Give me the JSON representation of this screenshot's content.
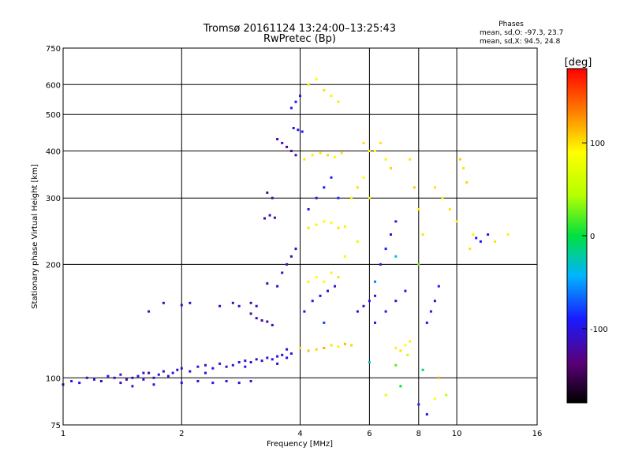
{
  "header": {
    "title_line1": "Tromsø 20161124 13:24:00–13:25:43",
    "title_line2": "RwPretec (Bp)"
  },
  "phases": {
    "label": "Phases",
    "line_o": "mean, sd,O: -97.3, 23.7",
    "line_x": "mean, sd,X:  94.5, 24.8"
  },
  "colorbar": {
    "unit": "[deg]",
    "range": [
      -180,
      180
    ],
    "ticks": [
      {
        "value": 100,
        "label": "100"
      },
      {
        "value": 0,
        "label": "0"
      },
      {
        "value": -100,
        "label": "-100"
      }
    ]
  },
  "chart_data": {
    "type": "scatter",
    "title": "Tromsø 20161124 13:24:00–13:25:43",
    "subtitle": "RwPretec (Bp)",
    "xlabel": "Frequency [MHz]",
    "ylabel": "Stationary phase Virtual Height [km]",
    "x_scale": "log",
    "y_scale": "log",
    "xlim": [
      1,
      16
    ],
    "ylim": [
      75,
      750
    ],
    "xticks": [
      {
        "value": 1,
        "label": "1"
      },
      {
        "value": 2,
        "label": "2"
      },
      {
        "value": 4,
        "label": "4"
      },
      {
        "value": 6,
        "label": "6"
      },
      {
        "value": 8,
        "label": "8"
      },
      {
        "value": 10,
        "label": "10"
      },
      {
        "value": 16,
        "label": "16"
      }
    ],
    "xgrid": [
      2,
      4,
      6,
      8,
      10
    ],
    "yticks": [
      {
        "value": 75,
        "label": "75"
      },
      {
        "value": 100,
        "label": "100"
      },
      {
        "value": 200,
        "label": "200"
      },
      {
        "value": 300,
        "label": "300"
      },
      {
        "value": 400,
        "label": "400"
      },
      {
        "value": 500,
        "label": "500"
      },
      {
        "value": 600,
        "label": "600"
      },
      {
        "value": 750,
        "label": "750"
      }
    ],
    "ygrid": [
      100,
      200,
      300,
      400,
      500,
      600
    ],
    "grid": true,
    "color_by": "phase [deg]",
    "points": [
      [
        1.0,
        96,
        -95
      ],
      [
        1.05,
        98,
        -100
      ],
      [
        1.1,
        97,
        -95
      ],
      [
        1.15,
        100,
        -105
      ],
      [
        1.2,
        99,
        -100
      ],
      [
        1.25,
        98,
        -110
      ],
      [
        1.3,
        101,
        -95
      ],
      [
        1.35,
        100,
        -100
      ],
      [
        1.4,
        102,
        -105
      ],
      [
        1.45,
        99,
        -120
      ],
      [
        1.5,
        100,
        -100
      ],
      [
        1.55,
        101,
        -110
      ],
      [
        1.6,
        99,
        -105
      ],
      [
        1.65,
        103,
        -125
      ],
      [
        1.7,
        100,
        -110
      ],
      [
        1.75,
        102,
        -100
      ],
      [
        1.8,
        104,
        -105
      ],
      [
        1.85,
        101,
        -115
      ],
      [
        1.9,
        103,
        -100
      ],
      [
        1.95,
        105,
        -110
      ],
      [
        2.0,
        106,
        -110
      ],
      [
        2.1,
        104,
        -105
      ],
      [
        2.2,
        107,
        -100
      ],
      [
        2.3,
        108,
        -110
      ],
      [
        2.4,
        106,
        -105
      ],
      [
        2.5,
        109,
        -100
      ],
      [
        2.6,
        107,
        -110
      ],
      [
        2.7,
        108,
        -100
      ],
      [
        2.8,
        110,
        -95
      ],
      [
        2.9,
        111,
        -105
      ],
      [
        3.0,
        110,
        -100
      ],
      [
        3.1,
        112,
        -110
      ],
      [
        3.2,
        111,
        -105
      ],
      [
        3.3,
        113,
        -100
      ],
      [
        3.4,
        112,
        -95
      ],
      [
        3.5,
        114,
        -105
      ],
      [
        3.6,
        115,
        -110
      ],
      [
        3.7,
        113,
        -100
      ],
      [
        3.8,
        116,
        -95
      ],
      [
        1.5,
        95,
        -105
      ],
      [
        1.7,
        96,
        -110
      ],
      [
        2.0,
        97,
        -100
      ],
      [
        2.2,
        98,
        -105
      ],
      [
        2.4,
        97,
        -95
      ],
      [
        2.6,
        98,
        -100
      ],
      [
        2.8,
        97,
        -105
      ],
      [
        3.0,
        98,
        -100
      ],
      [
        1.65,
        150,
        -115
      ],
      [
        1.8,
        158,
        -110
      ],
      [
        2.0,
        156,
        -120
      ],
      [
        2.1,
        158,
        -115
      ],
      [
        2.5,
        155,
        -120
      ],
      [
        2.7,
        158,
        -115
      ],
      [
        2.8,
        155,
        -110
      ],
      [
        3.0,
        158,
        -125
      ],
      [
        3.1,
        155,
        -115
      ],
      [
        3.0,
        148,
        -120
      ],
      [
        3.1,
        144,
        -115
      ],
      [
        3.2,
        142,
        -120
      ],
      [
        3.3,
        141,
        -125
      ],
      [
        3.4,
        138,
        -115
      ],
      [
        3.3,
        178,
        -120
      ],
      [
        3.5,
        175,
        -110
      ],
      [
        3.6,
        190,
        -115
      ],
      [
        3.7,
        200,
        -120
      ],
      [
        3.8,
        210,
        -115
      ],
      [
        3.9,
        220,
        -110
      ],
      [
        3.25,
        265,
        -120
      ],
      [
        3.35,
        270,
        -115
      ],
      [
        3.45,
        266,
        -125
      ],
      [
        3.3,
        310,
        -120
      ],
      [
        3.4,
        300,
        -115
      ],
      [
        3.5,
        430,
        -120
      ],
      [
        3.6,
        420,
        -115
      ],
      [
        3.7,
        410,
        -125
      ],
      [
        3.8,
        400,
        -120
      ],
      [
        3.9,
        390,
        -115
      ],
      [
        3.85,
        460,
        -100
      ],
      [
        3.95,
        455,
        -95
      ],
      [
        4.05,
        450,
        -100
      ],
      [
        3.8,
        520,
        -90
      ],
      [
        3.9,
        540,
        -95
      ],
      [
        4.0,
        560,
        -100
      ],
      [
        4.0,
        120,
        100
      ],
      [
        4.2,
        118,
        110
      ],
      [
        4.4,
        119,
        105
      ],
      [
        4.6,
        120,
        120
      ],
      [
        4.8,
        122,
        100
      ],
      [
        5.0,
        121,
        95
      ],
      [
        5.2,
        123,
        115
      ],
      [
        5.4,
        122,
        105
      ],
      [
        4.1,
        150,
        -105
      ],
      [
        4.3,
        160,
        -100
      ],
      [
        4.5,
        165,
        -110
      ],
      [
        4.7,
        170,
        -100
      ],
      [
        4.9,
        175,
        -105
      ],
      [
        4.2,
        180,
        95
      ],
      [
        4.4,
        185,
        90
      ],
      [
        4.6,
        180,
        85
      ],
      [
        4.8,
        190,
        95
      ],
      [
        5.0,
        185,
        100
      ],
      [
        4.2,
        250,
        100
      ],
      [
        4.4,
        255,
        95
      ],
      [
        4.6,
        260,
        85
      ],
      [
        4.8,
        258,
        90
      ],
      [
        5.0,
        250,
        100
      ],
      [
        5.2,
        252,
        95
      ],
      [
        4.2,
        280,
        -95
      ],
      [
        4.4,
        300,
        -100
      ],
      [
        4.6,
        320,
        -90
      ],
      [
        4.8,
        340,
        -95
      ],
      [
        5.0,
        300,
        -85
      ],
      [
        4.1,
        380,
        100
      ],
      [
        4.3,
        390,
        95
      ],
      [
        4.5,
        395,
        100
      ],
      [
        4.7,
        390,
        105
      ],
      [
        4.9,
        385,
        90
      ],
      [
        5.1,
        395,
        100
      ],
      [
        4.2,
        600,
        95
      ],
      [
        4.4,
        620,
        90
      ],
      [
        4.6,
        580,
        100
      ],
      [
        4.8,
        560,
        95
      ],
      [
        5.0,
        540,
        100
      ],
      [
        5.4,
        300,
        95
      ],
      [
        5.6,
        320,
        100
      ],
      [
        5.8,
        340,
        90
      ],
      [
        6.0,
        300,
        95
      ],
      [
        5.8,
        420,
        100
      ],
      [
        6.0,
        400,
        95
      ],
      [
        5.6,
        150,
        -100
      ],
      [
        5.8,
        155,
        -105
      ],
      [
        6.0,
        160,
        -95
      ],
      [
        6.2,
        165,
        -100
      ],
      [
        6.2,
        140,
        -95
      ],
      [
        6.6,
        150,
        -100
      ],
      [
        7.0,
        160,
        -105
      ],
      [
        7.4,
        170,
        -95
      ],
      [
        6.4,
        200,
        -100
      ],
      [
        6.6,
        220,
        -90
      ],
      [
        6.8,
        240,
        -100
      ],
      [
        7.0,
        260,
        -95
      ],
      [
        6.2,
        400,
        90
      ],
      [
        6.4,
        420,
        100
      ],
      [
        6.6,
        380,
        95
      ],
      [
        6.8,
        360,
        105
      ],
      [
        7.0,
        120,
        95
      ],
      [
        7.2,
        118,
        100
      ],
      [
        7.4,
        122,
        90
      ],
      [
        7.6,
        125,
        95
      ],
      [
        7.6,
        380,
        100
      ],
      [
        7.8,
        320,
        110
      ],
      [
        8.0,
        280,
        95
      ],
      [
        8.2,
        240,
        100
      ],
      [
        8.4,
        140,
        -95
      ],
      [
        8.6,
        150,
        -100
      ],
      [
        8.8,
        160,
        -105
      ],
      [
        9.0,
        175,
        -95
      ],
      [
        8.8,
        320,
        100
      ],
      [
        9.2,
        300,
        95
      ],
      [
        9.6,
        280,
        100
      ],
      [
        10.0,
        260,
        95
      ],
      [
        10.2,
        380,
        110
      ],
      [
        10.4,
        360,
        100
      ],
      [
        10.6,
        330,
        105
      ],
      [
        10.8,
        220,
        100
      ],
      [
        11.0,
        240,
        95
      ],
      [
        11.2,
        235,
        -100
      ],
      [
        11.5,
        230,
        -95
      ],
      [
        12.0,
        240,
        -100
      ],
      [
        12.5,
        230,
        100
      ],
      [
        13.5,
        240,
        95
      ],
      [
        6.0,
        110,
        -30
      ],
      [
        7.0,
        108,
        20
      ],
      [
        7.5,
        115,
        60
      ],
      [
        8.2,
        105,
        -10
      ],
      [
        9.0,
        100,
        120
      ],
      [
        9.4,
        90,
        50
      ],
      [
        8.0,
        85,
        -90
      ],
      [
        8.4,
        80,
        -100
      ],
      [
        8.8,
        88,
        90
      ],
      [
        7.2,
        95,
        0
      ],
      [
        6.6,
        90,
        70
      ],
      [
        4.6,
        140,
        -80
      ],
      [
        5.2,
        210,
        80
      ],
      [
        5.6,
        230,
        70
      ],
      [
        6.2,
        180,
        -60
      ],
      [
        7.0,
        210,
        -40
      ],
      [
        8.0,
        200,
        30
      ],
      [
        1.4,
        97,
        -115
      ],
      [
        1.6,
        103,
        -108
      ],
      [
        2.3,
        103,
        -102
      ],
      [
        2.9,
        107,
        -98
      ],
      [
        3.5,
        109,
        -112
      ],
      [
        3.7,
        119,
        -104
      ]
    ]
  }
}
